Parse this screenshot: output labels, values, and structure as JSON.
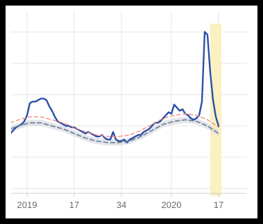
{
  "chart_data": {
    "type": "line",
    "title": "",
    "xlabel": "",
    "ylabel": "",
    "xlim": [
      0,
      84
    ],
    "ylim": [
      0,
      100
    ],
    "grid": true,
    "x_ticks": [
      {
        "x": 3,
        "label": "2019"
      },
      {
        "x": 20,
        "label": "17"
      },
      {
        "x": 37,
        "label": "34"
      },
      {
        "x": 55,
        "label": "2020"
      },
      {
        "x": 72,
        "label": "17"
      }
    ],
    "highlight_band": {
      "x_start": 70,
      "x_end": 72,
      "color": "#fbf0c0"
    },
    "series": [
      {
        "role": "observed",
        "color": "#2a4fa8",
        "x": [
          -3,
          -2,
          -1,
          0,
          1,
          2,
          3,
          4,
          5,
          6,
          7,
          8,
          9,
          10,
          11,
          12,
          13,
          14,
          15,
          16,
          17,
          18,
          19,
          20,
          21,
          22,
          23,
          24,
          25,
          26,
          27,
          28,
          29,
          30,
          31,
          32,
          33,
          34,
          35,
          36,
          37,
          38,
          39,
          40,
          41,
          42,
          43,
          44,
          45,
          46,
          47,
          48,
          49,
          50,
          51,
          52,
          53,
          54,
          55,
          56,
          57,
          58,
          59,
          60,
          61,
          62,
          63,
          64,
          65,
          66,
          67,
          68,
          69,
          70,
          71,
          72
        ],
        "values": [
          23,
          25,
          27,
          28,
          29,
          31,
          35,
          43,
          44,
          44,
          45,
          46,
          46,
          45,
          41,
          38,
          34,
          31,
          30,
          29,
          28,
          28,
          27,
          27,
          26,
          25,
          24,
          23,
          24,
          23,
          22,
          21,
          21,
          22,
          20,
          19,
          19,
          24,
          19,
          18,
          18,
          19,
          17,
          19,
          20,
          21,
          22,
          22,
          24,
          25,
          26,
          28,
          30,
          30,
          31,
          33,
          35,
          37,
          36,
          42,
          40,
          38,
          39,
          36,
          35,
          33,
          32,
          33,
          35,
          44,
          90,
          88,
          63,
          45,
          34,
          28
        ]
      },
      {
        "role": "expected",
        "color": "#6b7a8c",
        "x": [
          -3,
          0,
          4,
          8,
          12,
          16,
          20,
          24,
          28,
          32,
          36,
          40,
          44,
          48,
          52,
          56,
          60,
          64,
          68,
          72
        ],
        "values": [
          26,
          28,
          30,
          30,
          28,
          26,
          23,
          20,
          18,
          17,
          17,
          18,
          21,
          25,
          29,
          31,
          32,
          31,
          28,
          23
        ]
      },
      {
        "role": "upper-threshold",
        "color": "#f08a7e",
        "x": [
          -3,
          0,
          4,
          8,
          12,
          16,
          20,
          24,
          28,
          32,
          36,
          40,
          44,
          48,
          52,
          56,
          60,
          64,
          68,
          72
        ],
        "values": [
          30,
          32,
          34,
          34,
          32,
          30,
          27,
          24,
          22,
          21,
          21,
          22,
          25,
          29,
          33,
          35,
          36,
          35,
          32,
          27
        ]
      }
    ],
    "band": {
      "x": [
        -3,
        0,
        4,
        8,
        12,
        16,
        20,
        24,
        28,
        32,
        36,
        40,
        44,
        48,
        52,
        56,
        60,
        64,
        68,
        72
      ],
      "low": [
        24,
        26,
        28,
        28,
        26,
        24,
        21,
        18,
        16,
        15,
        15,
        16,
        19,
        23,
        27,
        29,
        30,
        29,
        26,
        21
      ],
      "high": [
        28,
        30,
        32,
        32,
        30,
        28,
        25,
        22,
        20,
        19,
        19,
        20,
        23,
        27,
        31,
        33,
        34,
        33,
        30,
        25
      ],
      "color": "#d5dae2"
    }
  }
}
